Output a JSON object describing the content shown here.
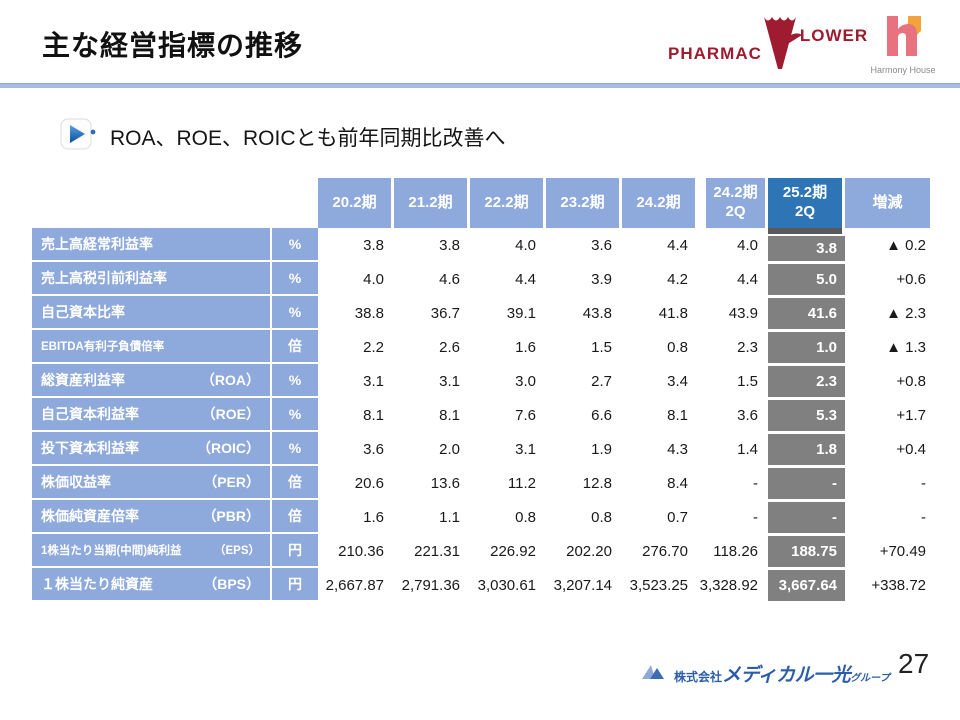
{
  "slide": {
    "title": "主な経営指標の推移",
    "bullet_text": "ROA、ROE、ROICとも前年同期比改善へ",
    "page_number": "27"
  },
  "logos": {
    "pharmacy_flower": {
      "text_left": "PHARMAC",
      "text_right": "LOWER"
    },
    "harmony_house": {
      "label": "Harmony House"
    },
    "footer_company": {
      "prefix": "株式会社",
      "main": "メディカル一光",
      "suffix": "グループ"
    }
  },
  "table": {
    "col_headers": [
      "20.2期",
      "21.2期",
      "22.2期",
      "23.2期",
      "24.2期",
      "24.2期\n2Q",
      "25.2期\n2Q",
      "増減"
    ],
    "highlight_col_header": "25.2期\n2Q",
    "rows": [
      {
        "label": "売上高経常利益率",
        "abbr": "",
        "unit": "%",
        "values": [
          "3.8",
          "3.8",
          "4.0",
          "3.6",
          "4.4",
          "4.0",
          "3.8"
        ],
        "delta": "▲ 0.2"
      },
      {
        "label": "売上高税引前利益率",
        "abbr": "",
        "unit": "%",
        "values": [
          "4.0",
          "4.6",
          "4.4",
          "3.9",
          "4.2",
          "4.4",
          "5.0"
        ],
        "delta": "+0.6"
      },
      {
        "label": "自己資本比率",
        "abbr": "",
        "unit": "%",
        "values": [
          "38.8",
          "36.7",
          "39.1",
          "43.8",
          "41.8",
          "43.9",
          "41.6"
        ],
        "delta": "▲ 2.3"
      },
      {
        "label": "EBITDA有利子負債倍率",
        "abbr": "",
        "unit": "倍",
        "values": [
          "2.2",
          "2.6",
          "1.6",
          "1.5",
          "0.8",
          "2.3",
          "1.0"
        ],
        "delta": "▲ 1.3"
      },
      {
        "label": "総資産利益率",
        "abbr": "（ROA）",
        "unit": "%",
        "values": [
          "3.1",
          "3.1",
          "3.0",
          "2.7",
          "3.4",
          "1.5",
          "2.3"
        ],
        "delta": "+0.8"
      },
      {
        "label": "自己資本利益率",
        "abbr": "（ROE）",
        "unit": "%",
        "values": [
          "8.1",
          "8.1",
          "7.6",
          "6.6",
          "8.1",
          "3.6",
          "5.3"
        ],
        "delta": "+1.7"
      },
      {
        "label": "投下資本利益率",
        "abbr": "（ROIC）",
        "unit": "%",
        "values": [
          "3.6",
          "2.0",
          "3.1",
          "1.9",
          "4.3",
          "1.4",
          "1.8"
        ],
        "delta": "+0.4"
      },
      {
        "label": "株価収益率",
        "abbr": "（PER）",
        "unit": "倍",
        "values": [
          "20.6",
          "13.6",
          "11.2",
          "12.8",
          "8.4",
          "-",
          "-"
        ],
        "delta": "-"
      },
      {
        "label": "株価純資産倍率",
        "abbr": "（PBR）",
        "unit": "倍",
        "values": [
          "1.6",
          "1.1",
          "0.8",
          "0.8",
          "0.7",
          "-",
          "-"
        ],
        "delta": "-"
      },
      {
        "label": "1株当たり当期(中間)純利益",
        "abbr": "（EPS）",
        "unit": "円",
        "values": [
          "210.36",
          "221.31",
          "226.92",
          "202.20",
          "276.70",
          "118.26",
          "188.75"
        ],
        "delta": "+70.49"
      },
      {
        "label": "１株当たり純資産",
        "abbr": "（BPS）",
        "unit": "円",
        "values": [
          "2,667.87",
          "2,791.36",
          "3,030.61",
          "3,207.14",
          "3,523.25",
          "3,328.92",
          "3,667.64"
        ],
        "delta": "+338.72"
      }
    ]
  },
  "colors": {
    "header_blue": "#8EA9DB",
    "active_blue": "#2E75B6",
    "highlight_gray": "#808080",
    "divider_blue": "#AAB9E2",
    "logo_red": "#9E1B30",
    "harmony_pink": "#E8727F",
    "harmony_orange": "#F2A33C",
    "footer_blue": "#2B5DA8"
  }
}
